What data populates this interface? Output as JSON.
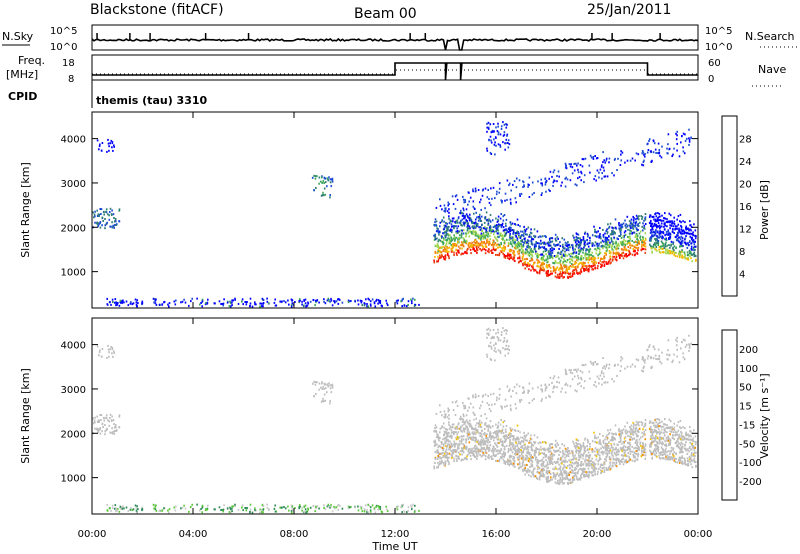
{
  "header": {
    "radar": "Blackstone (fitACF)",
    "beam": "Beam 00",
    "date": "25/Jan/2011"
  },
  "noise_panel": {
    "left_label": "N.Sky",
    "right_label": "N.Search",
    "left_ticks": [
      "10^5",
      "10^0"
    ],
    "right_ticks": [
      "10^5",
      "10^0"
    ]
  },
  "freq_panel": {
    "left_label_1": "Freq.",
    "left_label_2": "[MHz]",
    "right_label": "Nave",
    "left_ticks": [
      "18",
      "8"
    ],
    "right_ticks": [
      "60",
      "0"
    ]
  },
  "cpid": {
    "label": "CPID",
    "program": "themis (tau) 3310"
  },
  "colors": {
    "power_scale": [
      "#0000ff",
      "#1a4bd1",
      "#2e7d73",
      "#3aa45a",
      "#9fd64a",
      "#f5b800",
      "#f07a10",
      "#e83a0a",
      "#ff0000"
    ],
    "velocity_scale": [
      "#1a2fb0",
      "#2d6fd8",
      "#2e8b57",
      "#5cc93a",
      "#c8c8c8",
      "#f5c400",
      "#f59000",
      "#ee5500",
      "#ff0000"
    ],
    "ground_scatter": "#bdbdbd"
  },
  "chart_data": [
    {
      "type": "heatmap",
      "name": "power",
      "ylabel": "Slant Range [km]",
      "xlabel": "",
      "yticks": [
        "1000",
        "2000",
        "3000",
        "4000"
      ],
      "ylim": [
        180,
        4600
      ],
      "colorbar": {
        "label": "Power [dB]",
        "ticks": [
          "4",
          "8",
          "12",
          "16",
          "20",
          "24",
          "28"
        ],
        "range": [
          0,
          32
        ]
      }
    },
    {
      "type": "heatmap",
      "name": "velocity",
      "ylabel": "Slant Range [km]",
      "xlabel": "Time UT",
      "yticks": [
        "1000",
        "2000",
        "3000",
        "4000"
      ],
      "ylim": [
        180,
        4600
      ],
      "xticks": [
        "00:00",
        "04:00",
        "08:00",
        "12:00",
        "16:00",
        "20:00",
        "00:00"
      ],
      "xlim_hours": [
        0,
        24
      ],
      "colorbar": {
        "label": "Velocity [m s⁻¹]",
        "ticks": [
          "200",
          "100",
          "50",
          "15",
          "-15",
          "-50",
          "-100",
          "-200"
        ]
      }
    }
  ]
}
